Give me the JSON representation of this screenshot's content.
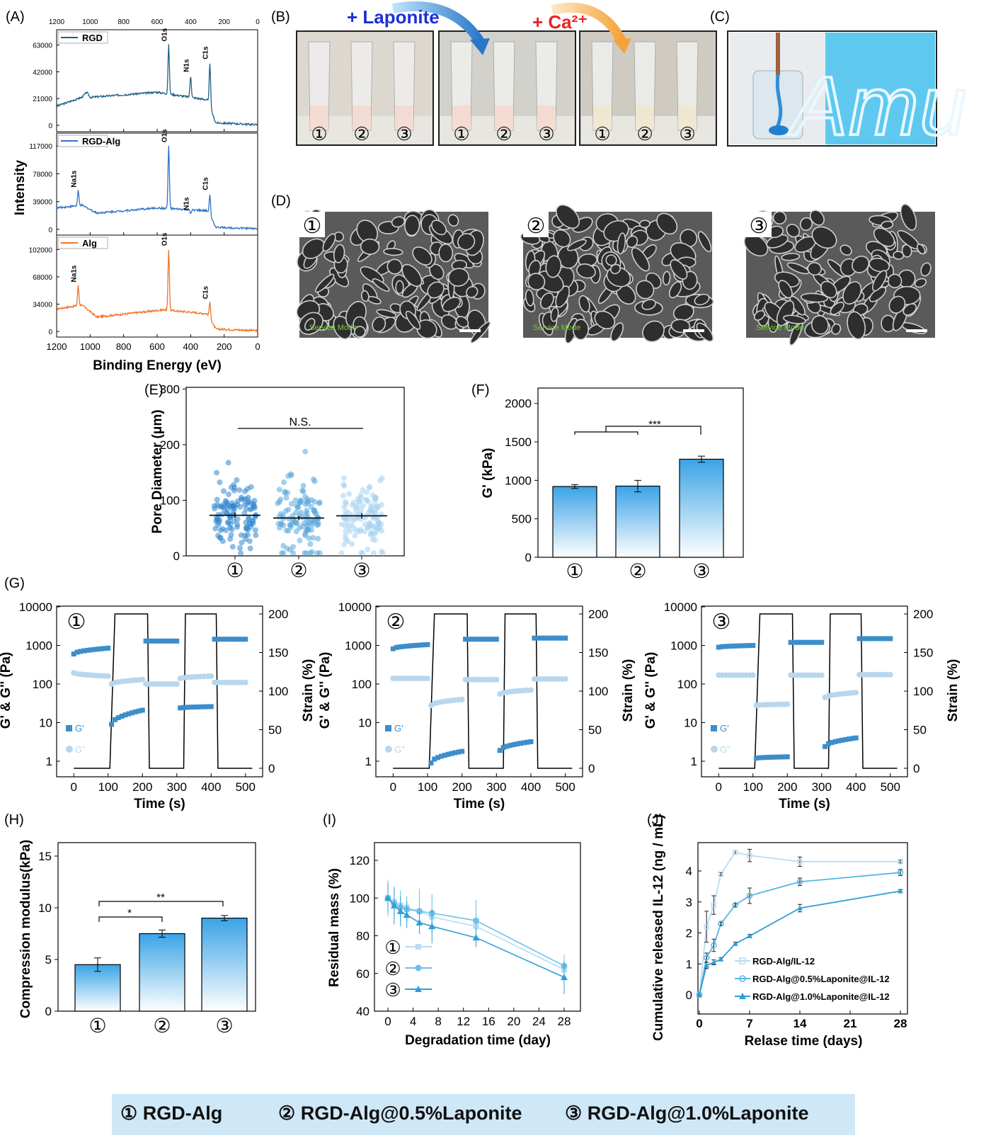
{
  "panel_letters": [
    "(A)",
    "(B)",
    "(C)",
    "(D)",
    "(E)",
    "(F)",
    "(G)",
    "(H)",
    "(I)",
    "(J)"
  ],
  "circled": [
    "①",
    "②",
    "③"
  ],
  "legend_bar": [
    "① RGD-Alg",
    "② RGD-Alg@0.5%Laponite",
    "③ RGD-Alg@1.0%Laponite"
  ],
  "panel_B": {
    "arrow1": "+ Laponite",
    "arrow2": "+ Ca²⁺"
  },
  "panel_C": {
    "letters": "Amu"
  },
  "panel_D": {
    "watermark": "Service Mode"
  },
  "chart_data": [
    {
      "panel": "A",
      "type": "line",
      "xlabel": "Binding Energy (eV)",
      "ylabel": "Intensity",
      "xlim": [
        1200,
        0
      ],
      "xticks": [
        1200,
        1000,
        800,
        600,
        400,
        200,
        0
      ],
      "subplots": [
        {
          "name": "RGD",
          "color": "#1f5f86",
          "yticks": [
            0,
            21000,
            42000,
            63000
          ],
          "ylim": [
            -5000,
            75000
          ],
          "peaks": [
            {
              "label": "O1s",
              "x": 531,
              "y": 63000
            },
            {
              "label": "N1s",
              "x": 400,
              "y": 39000
            },
            {
              "label": "C1s",
              "x": 285,
              "y": 49000
            }
          ],
          "baseline": [
            [
              1200,
              15000
            ],
            [
              1050,
              22000
            ],
            [
              1020,
              26000
            ],
            [
              1000,
              22000
            ],
            [
              600,
              26000
            ],
            [
              300,
              20000
            ],
            [
              250,
              2000
            ],
            [
              0,
              500
            ]
          ]
        },
        {
          "name": "RGD-Alg",
          "color": "#2f72c8",
          "yticks": [
            0,
            39000,
            78000,
            117000
          ],
          "ylim": [
            -8000,
            135000
          ],
          "peaks": [
            {
              "label": "Na1s",
              "x": 1071,
              "y": 54000
            },
            {
              "label": "O1s",
              "x": 531,
              "y": 117000
            },
            {
              "label": "N1s",
              "x": 400,
              "y": 22000
            },
            {
              "label": "C1s",
              "x": 285,
              "y": 50000
            }
          ],
          "baseline": [
            [
              1200,
              30000
            ],
            [
              1050,
              34000
            ],
            [
              960,
              23000
            ],
            [
              600,
              30000
            ],
            [
              300,
              26000
            ],
            [
              250,
              3000
            ],
            [
              0,
              1000
            ]
          ]
        },
        {
          "name": "Alg",
          "color": "#f0752a",
          "yticks": [
            0,
            34000,
            68000,
            102000
          ],
          "ylim": [
            -7000,
            120000
          ],
          "peaks": [
            {
              "label": "Na1s",
              "x": 1071,
              "y": 57000
            },
            {
              "label": "O1s",
              "x": 531,
              "y": 102000
            },
            {
              "label": "C1s",
              "x": 285,
              "y": 36000
            }
          ],
          "baseline": [
            [
              1200,
              28000
            ],
            [
              1050,
              33000
            ],
            [
              960,
              18000
            ],
            [
              560,
              27000
            ],
            [
              300,
              22000
            ],
            [
              250,
              3000
            ],
            [
              0,
              1000
            ]
          ]
        }
      ]
    },
    {
      "panel": "E",
      "type": "scatter",
      "ylabel": "Pore Diameter (μm)",
      "ylim": [
        0,
        300
      ],
      "yticks": [
        0,
        100,
        200,
        300
      ],
      "categories": [
        "①",
        "②",
        "③"
      ],
      "means": [
        73,
        68,
        72
      ],
      "sem": [
        5,
        4,
        5
      ],
      "annotation": "N.S."
    },
    {
      "panel": "F",
      "type": "bar",
      "ylabel": "G' (kPa)",
      "ylim": [
        0,
        2000
      ],
      "yticks": [
        0,
        500,
        1000,
        1500,
        2000
      ],
      "categories": [
        "①",
        "②",
        "③"
      ],
      "values": [
        920,
        925,
        1275
      ],
      "errors": [
        25,
        75,
        40
      ],
      "annotation": "***"
    },
    {
      "panel": "G",
      "type": "line",
      "xlabel": "Time (s)",
      "ylabel_left": "G' & G'' (Pa)",
      "ylabel_right": "Strain (%)",
      "xticks": [
        0,
        100,
        200,
        300,
        400,
        500
      ],
      "yticks_left": [
        1,
        10,
        100,
        1000,
        10000
      ],
      "yticks_right": [
        0,
        50,
        100,
        150,
        200
      ],
      "legend": [
        "G'",
        "G''"
      ],
      "subplots": [
        {
          "name": "①",
          "G1": [
            600,
            850
          ],
          "G2": [
            195,
            160
          ],
          "G3": [
            9,
            21
          ],
          "G4": [
            1300,
            1300
          ],
          "G5": [
            24,
            26
          ],
          "G6": [
            1450,
            1450
          ],
          "Gd1": [
            100,
            130
          ],
          "Gd2": [
            100,
            100
          ],
          "Gd3": [
            140,
            160
          ],
          "Gd4": [
            110,
            110
          ]
        },
        {
          "name": "②",
          "G1": [
            820,
            1050
          ],
          "G2": [
            140,
            140
          ],
          "G3": [
            0.9,
            1.8
          ],
          "G4": [
            1450,
            1450
          ],
          "G5": [
            1.9,
            3.2
          ],
          "G6": [
            1550,
            1550
          ],
          "Gd1": [
            28,
            40
          ],
          "Gd2": [
            130,
            130
          ],
          "Gd3": [
            55,
            70
          ],
          "Gd4": [
            135,
            135
          ]
        },
        {
          "name": "③",
          "G1": [
            900,
            1000
          ],
          "G2": [
            170,
            170
          ],
          "G3": [
            1.2,
            1.3
          ],
          "G4": [
            1200,
            1200
          ],
          "G5": [
            2.4,
            4
          ],
          "G6": [
            1500,
            1500
          ],
          "Gd1": [
            28,
            30
          ],
          "Gd2": [
            170,
            170
          ],
          "Gd3": [
            45,
            60
          ],
          "Gd4": [
            175,
            175
          ]
        }
      ]
    },
    {
      "panel": "H",
      "type": "bar",
      "ylabel": "Compression modulus(kPa)",
      "ylim": [
        0,
        15
      ],
      "yticks": [
        0,
        5,
        10,
        15
      ],
      "categories": [
        "①",
        "②",
        "③"
      ],
      "values": [
        4.5,
        7.5,
        9.0
      ],
      "errors": [
        0.65,
        0.35,
        0.25
      ],
      "annotations": [
        "*",
        "**"
      ]
    },
    {
      "panel": "I",
      "type": "line",
      "xlabel": "Degradation time (day)",
      "ylabel": "Residual mass (%)",
      "xlim": [
        0,
        28
      ],
      "ylim": [
        40,
        120
      ],
      "xticks": [
        0,
        4,
        8,
        12,
        16,
        20,
        24,
        28
      ],
      "yticks": [
        40,
        60,
        80,
        100,
        120
      ],
      "series": [
        {
          "name": "①",
          "x": [
            0,
            1,
            2,
            3,
            5,
            7,
            14,
            28
          ],
          "y": [
            100,
            98,
            96,
            95,
            93,
            90,
            85,
            62
          ],
          "err": [
            10,
            7,
            8,
            6,
            8,
            9,
            6,
            5
          ]
        },
        {
          "name": "②",
          "x": [
            0,
            1,
            2,
            3,
            5,
            7,
            14,
            28
          ],
          "y": [
            100,
            97,
            95,
            94,
            93,
            92,
            88,
            64
          ],
          "err": [
            9,
            8,
            9,
            7,
            12,
            10,
            11,
            6
          ]
        },
        {
          "name": "③",
          "x": [
            0,
            1,
            2,
            3,
            5,
            7,
            14,
            28
          ],
          "y": [
            100,
            96,
            93,
            91,
            87,
            85,
            79,
            58
          ],
          "err": [
            8,
            10,
            8,
            7,
            6,
            9,
            5,
            9
          ]
        }
      ]
    },
    {
      "panel": "J",
      "type": "line",
      "xlabel": "Relase time (days)",
      "ylabel": "Cumulative released IL-12 (ng / mL)",
      "xlim": [
        0,
        28
      ],
      "ylim": [
        -0.3,
        5.0
      ],
      "xticks": [
        0,
        7,
        14,
        21,
        28
      ],
      "yticks": [
        0,
        1,
        2,
        3,
        4
      ],
      "series": [
        {
          "name": "RGD-Alg/IL-12",
          "x": [
            0,
            1,
            2,
            3,
            5,
            7,
            14,
            28
          ],
          "y": [
            0,
            2.2,
            2.9,
            3.9,
            4.6,
            4.5,
            4.3,
            4.3
          ],
          "err": [
            0,
            0.5,
            0.3,
            0.05,
            0.07,
            0.2,
            0.15,
            0.05
          ]
        },
        {
          "name": "RGD-Alg@0.5%Laponite@IL-12",
          "x": [
            0,
            1,
            2,
            3,
            5,
            7,
            14,
            28
          ],
          "y": [
            0,
            1.2,
            1.6,
            2.3,
            2.9,
            3.2,
            3.65,
            3.95
          ],
          "err": [
            0,
            0.15,
            0.2,
            0.05,
            0.05,
            0.25,
            0.12,
            0.1
          ]
        },
        {
          "name": "RGD-Alg@1.0%Laponite@IL-12",
          "x": [
            0,
            1,
            2,
            3,
            5,
            7,
            14,
            28
          ],
          "y": [
            0,
            0.95,
            1.05,
            1.15,
            1.65,
            1.9,
            2.8,
            3.35
          ],
          "err": [
            0,
            0.1,
            0.08,
            0.05,
            0.05,
            0.05,
            0.12,
            0.05
          ]
        }
      ]
    }
  ]
}
